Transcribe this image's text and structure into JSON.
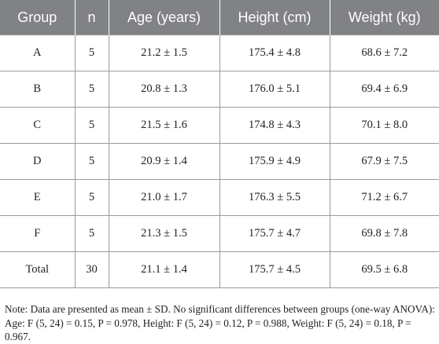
{
  "table": {
    "headers": [
      "Group",
      "n",
      "Age (years)",
      "Height (cm)",
      "Weight (kg)"
    ],
    "rows": [
      [
        "A",
        "5",
        "21.2 ± 1.5",
        "175.4 ± 4.8",
        "68.6 ± 7.2"
      ],
      [
        "B",
        "5",
        "20.8 ± 1.3",
        "176.0 ± 5.1",
        "69.4 ± 6.9"
      ],
      [
        "C",
        "5",
        "21.5 ± 1.6",
        "174.8 ± 4.3",
        "70.1 ± 8.0"
      ],
      [
        "D",
        "5",
        "20.9 ± 1.4",
        "175.9 ± 4.9",
        "67.9 ± 7.5"
      ],
      [
        "E",
        "5",
        "21.0 ± 1.7",
        "176.3 ± 5.5",
        "71.2 ± 6.7"
      ],
      [
        "F",
        "5",
        "21.3 ± 1.5",
        "175.7 ± 4.7",
        "69.8 ± 7.8"
      ],
      [
        "Total",
        "30",
        "21.1 ± 1.4",
        "175.7 ± 4.5",
        "69.5 ± 6.8"
      ]
    ],
    "header_bg": "#808285"
  },
  "note": "Note: Data are presented as mean ± SD. No significant differences between groups (one-way ANOVA): Age: F (5, 24) = 0.15, P = 0.978, Height: F (5, 24) = 0.12, P = 0.988, Weight: F (5, 24) = 0.18, P = 0.967."
}
